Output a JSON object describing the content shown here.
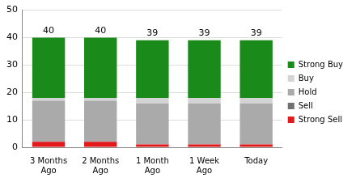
{
  "chart_data": {
    "type": "bar",
    "stacked": true,
    "categories": [
      "3 Months Ago",
      "2 Months Ago",
      "1 Month Ago",
      "1 Week Ago",
      "Today"
    ],
    "series": [
      {
        "name": "Strong Sell",
        "color": "#e31a1c",
        "values": [
          2,
          2,
          1,
          1,
          1
        ]
      },
      {
        "name": "Sell",
        "color": "#707070",
        "values": [
          0,
          0,
          0,
          0,
          0
        ]
      },
      {
        "name": "Hold",
        "color": "#aaaaaa",
        "values": [
          15,
          15,
          15,
          15,
          15
        ]
      },
      {
        "name": "Buy",
        "color": "#d4d4d4",
        "values": [
          1,
          1,
          2,
          2,
          2
        ]
      },
      {
        "name": "Strong Buy",
        "color": "#1a8a1a",
        "values": [
          22,
          22,
          21,
          21,
          21
        ]
      }
    ],
    "totals": [
      40,
      40,
      39,
      39,
      39
    ],
    "ylim": [
      0,
      50
    ],
    "yticks": [
      0,
      10,
      20,
      30,
      40,
      50
    ],
    "grid": true,
    "legend": "right"
  }
}
